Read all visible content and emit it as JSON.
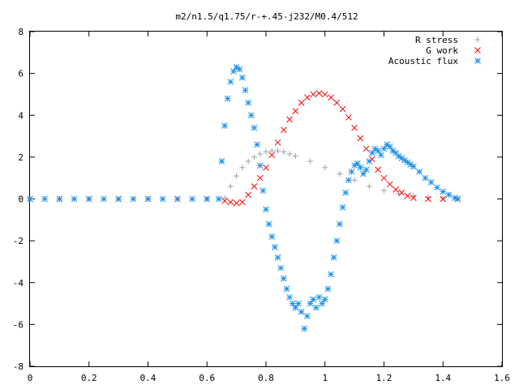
{
  "chart_data": {
    "type": "scatter",
    "title": "m2/n1.5/q1.75/r-+.45-j232/M0.4/512",
    "xlabel": "",
    "ylabel": "",
    "xlim": [
      0,
      1.6
    ],
    "ylim": [
      -8,
      8
    ],
    "xticks": [
      0,
      0.2,
      0.4,
      0.6,
      0.8,
      1,
      1.2,
      1.4,
      1.6
    ],
    "yticks": [
      -8,
      -6,
      -4,
      -2,
      0,
      2,
      4,
      6,
      8
    ],
    "grid": false,
    "legend_position": "top-right",
    "series": [
      {
        "name": "R stress",
        "marker": "plus",
        "color": "#a0a0a0",
        "x": [
          0.0,
          0.1,
          0.2,
          0.3,
          0.4,
          0.5,
          0.6,
          0.66,
          0.68,
          0.7,
          0.72,
          0.74,
          0.76,
          0.78,
          0.8,
          0.82,
          0.84,
          0.86,
          0.88,
          0.9,
          0.95,
          1.0,
          1.05,
          1.1,
          1.15,
          1.2,
          1.25,
          1.3,
          1.35,
          1.4,
          1.45
        ],
        "y": [
          0.0,
          0.0,
          0.0,
          0.0,
          0.0,
          0.0,
          0.0,
          0.05,
          0.6,
          1.1,
          1.5,
          1.8,
          2.0,
          2.15,
          2.25,
          2.3,
          2.3,
          2.25,
          2.15,
          2.05,
          1.8,
          1.5,
          1.2,
          0.9,
          0.6,
          0.4,
          0.25,
          0.15,
          0.08,
          0.03,
          0.0
        ]
      },
      {
        "name": "G work",
        "marker": "cross",
        "color": "#ff0000",
        "x": [
          0.0,
          0.1,
          0.2,
          0.3,
          0.4,
          0.5,
          0.6,
          0.66,
          0.68,
          0.7,
          0.72,
          0.74,
          0.76,
          0.78,
          0.8,
          0.82,
          0.84,
          0.86,
          0.88,
          0.9,
          0.92,
          0.94,
          0.96,
          0.98,
          1.0,
          1.02,
          1.04,
          1.06,
          1.08,
          1.1,
          1.12,
          1.14,
          1.16,
          1.18,
          1.2,
          1.22,
          1.24,
          1.26,
          1.28,
          1.3,
          1.35,
          1.4,
          1.45
        ],
        "y": [
          0.0,
          0.0,
          0.0,
          0.0,
          0.0,
          0.0,
          0.0,
          -0.1,
          -0.15,
          -0.2,
          -0.15,
          0.2,
          0.6,
          1.0,
          1.5,
          2.1,
          2.7,
          3.3,
          3.8,
          4.2,
          4.6,
          4.85,
          5.0,
          5.05,
          5.0,
          4.85,
          4.6,
          4.3,
          3.9,
          3.4,
          2.9,
          2.4,
          1.9,
          1.4,
          1.0,
          0.7,
          0.45,
          0.3,
          0.15,
          0.05,
          0.0,
          0.0,
          0.0
        ]
      },
      {
        "name": "Acoustic flux",
        "marker": "asterisk",
        "color": "#1e90e8",
        "x": [
          0.0,
          0.05,
          0.1,
          0.15,
          0.2,
          0.25,
          0.3,
          0.35,
          0.4,
          0.45,
          0.5,
          0.55,
          0.6,
          0.64,
          0.65,
          0.66,
          0.67,
          0.68,
          0.69,
          0.7,
          0.71,
          0.72,
          0.73,
          0.74,
          0.75,
          0.76,
          0.77,
          0.78,
          0.79,
          0.8,
          0.81,
          0.82,
          0.83,
          0.84,
          0.85,
          0.86,
          0.87,
          0.88,
          0.89,
          0.9,
          0.91,
          0.92,
          0.93,
          0.94,
          0.95,
          0.96,
          0.97,
          0.98,
          0.99,
          1.0,
          1.01,
          1.02,
          1.03,
          1.04,
          1.05,
          1.06,
          1.07,
          1.08,
          1.09,
          1.1,
          1.11,
          1.12,
          1.13,
          1.14,
          1.15,
          1.16,
          1.17,
          1.18,
          1.19,
          1.2,
          1.21,
          1.22,
          1.23,
          1.24,
          1.25,
          1.26,
          1.27,
          1.28,
          1.29,
          1.3,
          1.32,
          1.34,
          1.36,
          1.38,
          1.4,
          1.42,
          1.44,
          1.45
        ],
        "y": [
          0.0,
          0.0,
          0.0,
          0.0,
          0.0,
          0.0,
          0.0,
          0.0,
          0.0,
          0.0,
          0.0,
          0.0,
          0.0,
          0.0,
          1.8,
          3.5,
          4.8,
          5.6,
          6.1,
          6.3,
          6.2,
          5.8,
          5.2,
          4.6,
          4.0,
          3.4,
          2.6,
          1.6,
          0.4,
          -0.5,
          -1.2,
          -1.8,
          -2.3,
          -2.8,
          -3.3,
          -3.8,
          -4.3,
          -4.7,
          -5.0,
          -5.2,
          -5.0,
          -5.4,
          -6.2,
          -5.6,
          -5.0,
          -4.8,
          -5.2,
          -4.7,
          -5.0,
          -4.8,
          -4.3,
          -3.6,
          -2.8,
          -2.0,
          -1.2,
          -0.4,
          0.3,
          0.9,
          1.3,
          1.6,
          1.7,
          1.5,
          1.2,
          1.4,
          1.8,
          2.2,
          2.4,
          2.3,
          2.1,
          2.4,
          2.6,
          2.5,
          2.3,
          2.2,
          2.05,
          1.95,
          1.85,
          1.75,
          1.65,
          1.55,
          1.3,
          1.0,
          0.8,
          0.55,
          0.35,
          0.2,
          0.05,
          0.0
        ]
      }
    ]
  }
}
